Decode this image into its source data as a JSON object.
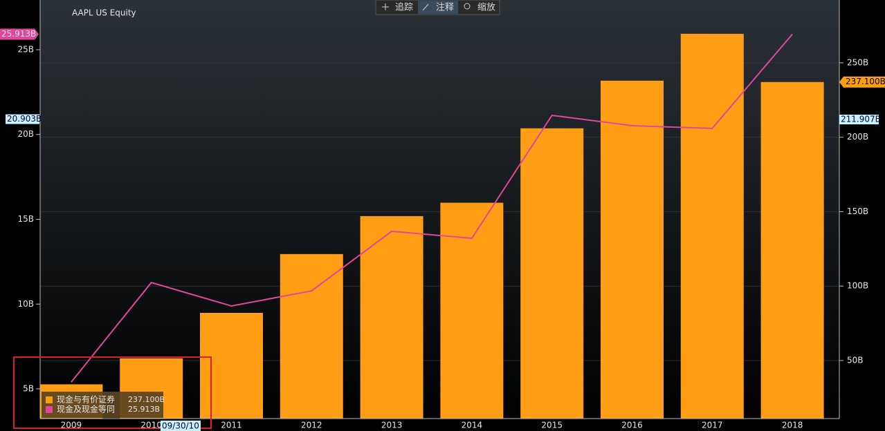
{
  "chart_data": {
    "type": "combo",
    "title": "AAPL US Equity",
    "categories": [
      "2009",
      "2010",
      "2011",
      "2012",
      "2013",
      "2014",
      "2015",
      "2016",
      "2017",
      "2018"
    ],
    "series": [
      {
        "name": "现金与有价证券",
        "type": "bar",
        "axis": "y2",
        "color": "#ff9d14",
        "values": [
          34,
          51.5,
          82,
          121.5,
          147,
          156,
          206,
          238,
          269.5,
          237.1
        ],
        "value_labels": [
          null,
          null,
          null,
          null,
          null,
          null,
          null,
          null,
          null,
          "237.100B"
        ]
      },
      {
        "name": "现金及现金等同",
        "type": "line",
        "axis": "y",
        "color": "#e0469a",
        "values": [
          5.4,
          11.27,
          9.89,
          10.78,
          14.29,
          13.88,
          21.13,
          20.52,
          20.36,
          25.913
        ],
        "value_labels": [
          null,
          null,
          null,
          null,
          null,
          null,
          null,
          null,
          null,
          "25.913B"
        ]
      }
    ],
    "ylim": [
      3.25,
      27.93
    ],
    "yticks": [
      {
        "value": 5,
        "label": "5B"
      },
      {
        "value": 10,
        "label": "10B"
      },
      {
        "value": 15,
        "label": "15B"
      },
      {
        "value": 20,
        "label": "20B"
      },
      {
        "value": 25,
        "label": "25B"
      }
    ],
    "y2lim": [
      11,
      292.2
    ],
    "y2ticks": [
      {
        "value": 50,
        "label": "50B"
      },
      {
        "value": 100,
        "label": "100B"
      },
      {
        "value": 150,
        "label": "150B"
      },
      {
        "value": 200,
        "label": "200B"
      },
      {
        "value": 250,
        "label": "250B"
      }
    ],
    "grid": true,
    "crosshair": {
      "y": 20.903,
      "y_label": "20.903B",
      "y2": 211.907,
      "y2_label": "211.907B",
      "x_label": "09/30/10"
    }
  },
  "toolbar": {
    "buttons": [
      "追踪",
      "注释",
      "缩放"
    ]
  }
}
